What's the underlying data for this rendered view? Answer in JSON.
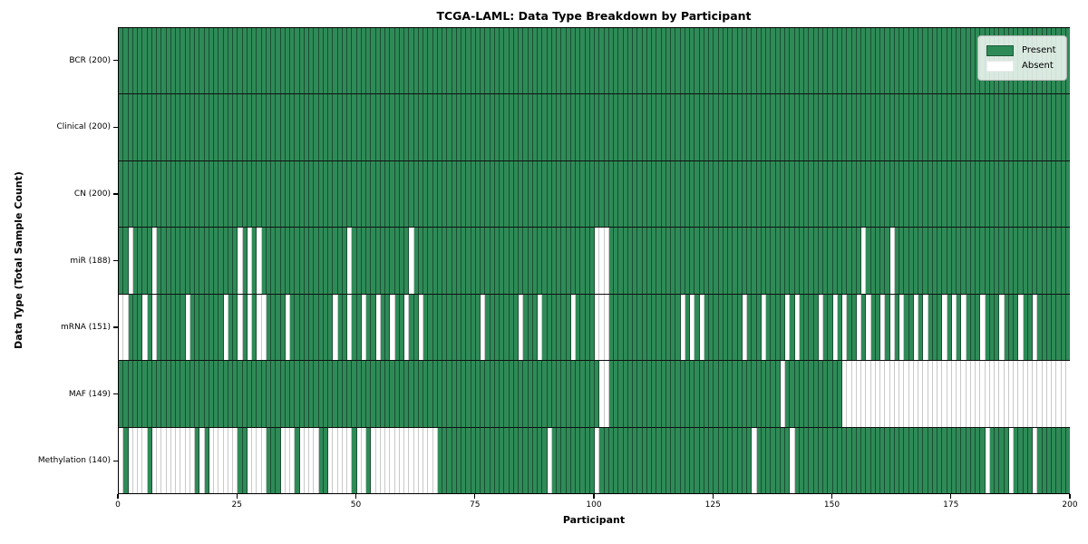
{
  "title": "TCGA-LAML: Data Type Breakdown by Participant",
  "xlabel": "Participant",
  "ylabel": "Data Type (Total Sample Count)",
  "legend": {
    "present_label": "Present",
    "absent_label": "Absent"
  },
  "colors": {
    "present": "#2e8b57",
    "absent": "#ffffff"
  },
  "chart_data": {
    "type": "heatmap",
    "x_axis_label": "Participant",
    "y_axis_label": "Data Type (Total Sample Count)",
    "n_participants": 200,
    "x_ticks": [
      0,
      25,
      50,
      75,
      100,
      125,
      150,
      175,
      200
    ],
    "xlim": [
      0,
      200
    ],
    "legend_position": "upper right",
    "grid": "cell-borders",
    "rows": [
      {
        "label": "BCR (200)",
        "data_type": "BCR",
        "total": 200,
        "absent_participants": []
      },
      {
        "label": "Clinical (200)",
        "data_type": "Clinical",
        "total": 200,
        "absent_participants": []
      },
      {
        "label": "CN (200)",
        "data_type": "CN",
        "total": 200,
        "absent_participants": []
      },
      {
        "label": "miR (188)",
        "data_type": "miR",
        "total": 188,
        "absent_participants": [
          2,
          7,
          25,
          27,
          29,
          48,
          61,
          100,
          101,
          102,
          156,
          162
        ]
      },
      {
        "label": "mRNA (151)",
        "data_type": "mRNA",
        "total": 151,
        "absent_participants": [
          0,
          1,
          5,
          7,
          14,
          22,
          25,
          27,
          29,
          30,
          35,
          45,
          48,
          51,
          54,
          57,
          60,
          63,
          76,
          84,
          88,
          95,
          100,
          101,
          102,
          118,
          120,
          122,
          131,
          135,
          140,
          142,
          147,
          150,
          152,
          155,
          157,
          160,
          162,
          164,
          167,
          169,
          173,
          175,
          177,
          181,
          185,
          189,
          192
        ]
      },
      {
        "label": "MAF (149)",
        "data_type": "MAF",
        "total": 149,
        "absent_participants": [
          101,
          102,
          139,
          152,
          153,
          154,
          155,
          156,
          157,
          158,
          159,
          160,
          161,
          162,
          163,
          164,
          165,
          166,
          167,
          168,
          169,
          170,
          171,
          172,
          173,
          174,
          175,
          176,
          177,
          178,
          179,
          180,
          181,
          182,
          183,
          184,
          185,
          186,
          187,
          188,
          189,
          190,
          191,
          192,
          193,
          194,
          195,
          196,
          197,
          198,
          199
        ]
      },
      {
        "label": "Methylation (140)",
        "data_type": "Methylation",
        "total": 140,
        "absent_participants": [
          0,
          2,
          3,
          4,
          5,
          7,
          8,
          9,
          10,
          11,
          12,
          13,
          14,
          15,
          17,
          19,
          20,
          21,
          22,
          23,
          24,
          27,
          28,
          29,
          30,
          34,
          35,
          36,
          38,
          39,
          40,
          41,
          44,
          45,
          46,
          47,
          48,
          50,
          51,
          53,
          54,
          55,
          56,
          57,
          58,
          59,
          60,
          61,
          62,
          63,
          64,
          65,
          66,
          90,
          100,
          133,
          141,
          182,
          187,
          192
        ]
      }
    ]
  }
}
